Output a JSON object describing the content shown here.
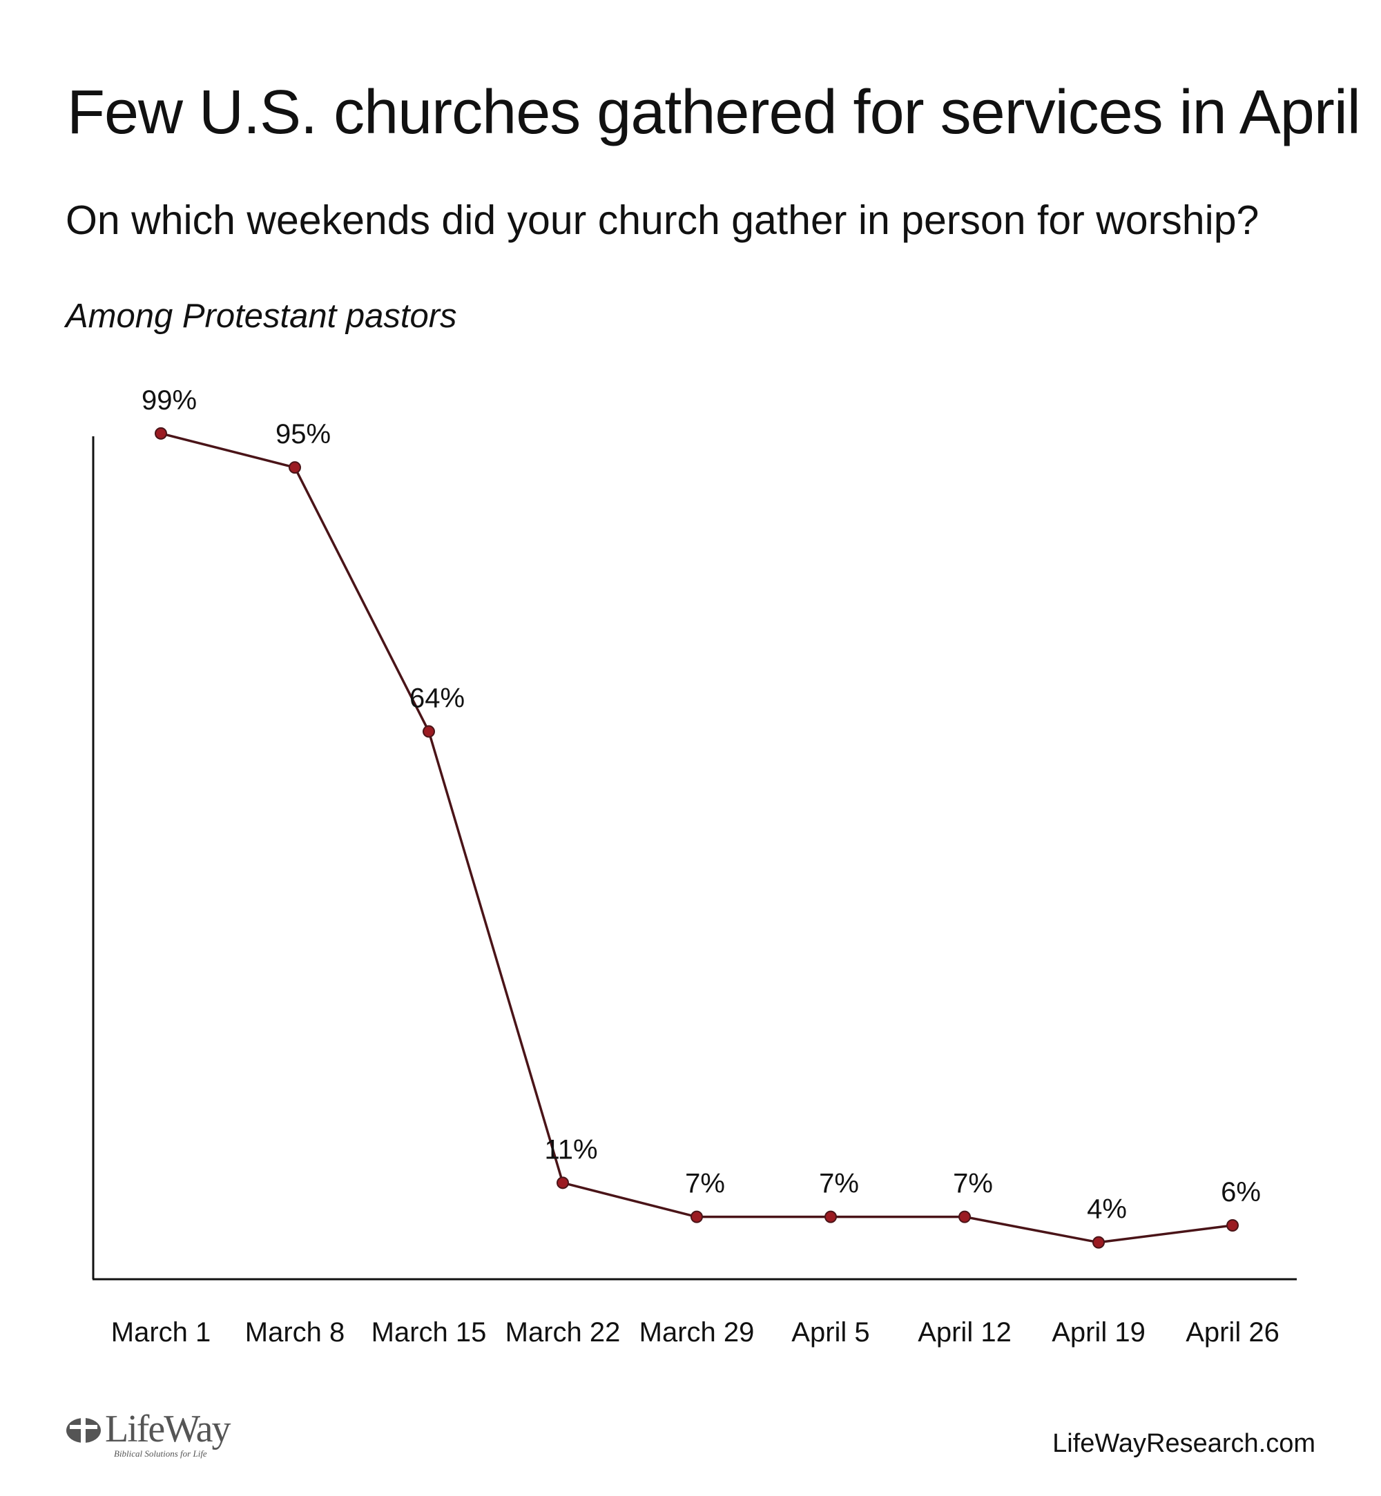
{
  "title": "Few U.S. churches gathered for services in April",
  "subtitle": "On which weekends did your church gather in person for worship?",
  "note": "Among Protestant pastors",
  "colors": {
    "line": "#4a1418",
    "marker": "#9b1b22",
    "axis": "#111111"
  },
  "chart_data": {
    "type": "line",
    "title": "Few U.S. churches gathered for services in April",
    "subtitle": "On which weekends did your church gather in person for worship?",
    "xlabel": "",
    "ylabel": "",
    "categories": [
      "March 1",
      "March 8",
      "March 15",
      "March 22",
      "March 29",
      "April 5",
      "April 12",
      "April 19",
      "April 26"
    ],
    "values": [
      99,
      95,
      64,
      11,
      7,
      7,
      7,
      4,
      6
    ],
    "value_labels": [
      "99%",
      "95%",
      "64%",
      "11%",
      "7%",
      "7%",
      "7%",
      "4%",
      "6%"
    ],
    "ylim": [
      0,
      100
    ],
    "grid": false,
    "legend": "none",
    "y_ticks_shown": false
  },
  "logo": {
    "name": "LifeWay",
    "tagline": "Biblical Solutions for Life",
    "icon": "lifeway-cross-logo-icon"
  },
  "site": "LifeWayResearch.com"
}
